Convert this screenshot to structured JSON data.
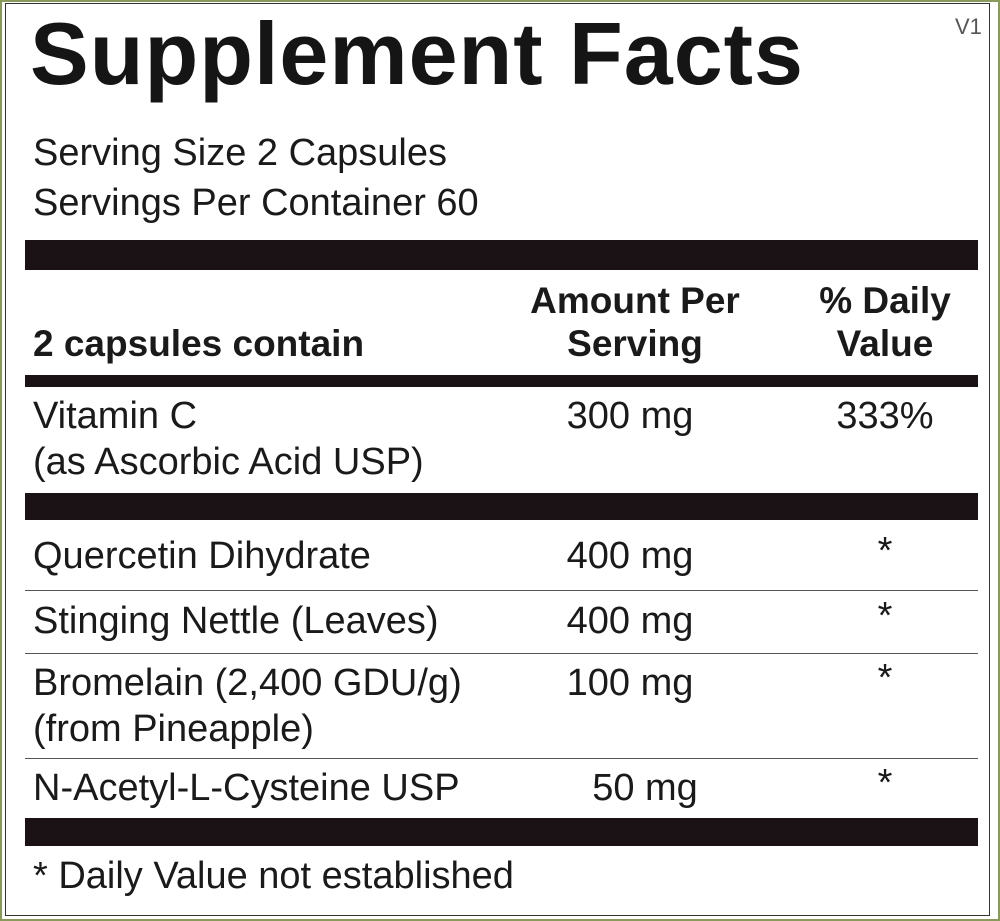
{
  "title": "Supplement Facts",
  "version": "V1",
  "serving_size": "Serving Size 2 Capsules",
  "servings_per_container": "Servings Per Container 60",
  "header": {
    "col1": "2 capsules contain",
    "col2_line1": "Amount Per",
    "col2_line2": "Serving",
    "col3_line1": "% Daily",
    "col3_line2": "Value"
  },
  "rows": [
    {
      "name": "Vitamin C",
      "sub": "(as Ascorbic Acid USP)",
      "amount": "300 mg",
      "dv": "333%"
    },
    {
      "name": "Quercetin Dihydrate",
      "amount": "400 mg",
      "dv": "*"
    },
    {
      "name": "Stinging Nettle (Leaves)",
      "amount": "400 mg",
      "dv": "*"
    },
    {
      "name": "Bromelain (2,400 GDU/g)",
      "sub": "(from Pineapple)",
      "amount": "100 mg",
      "dv": "*"
    },
    {
      "name": "N-Acetyl-L-Cysteine USP",
      "amount": "50 mg",
      "dv": "*"
    }
  ],
  "footnote": "* Daily Value not established"
}
